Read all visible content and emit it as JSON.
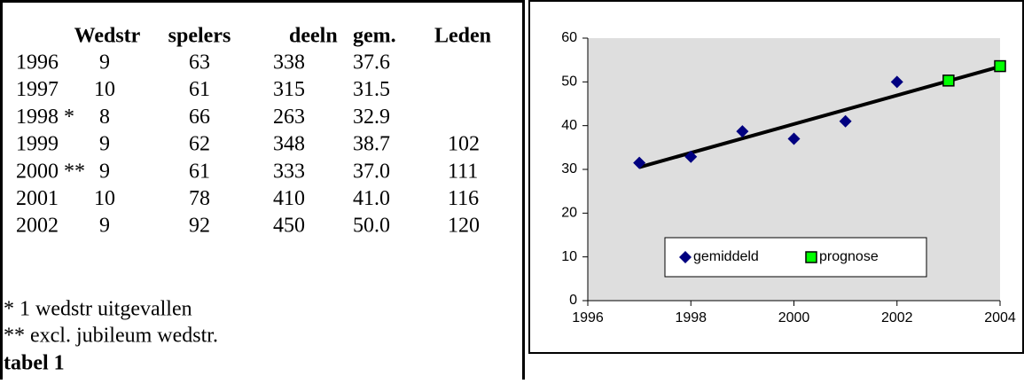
{
  "table": {
    "headers": [
      "Wedstr",
      "spelers",
      "deeln",
      "gem.",
      "Leden"
    ],
    "rows": [
      [
        "1996",
        "9",
        "63",
        "338",
        "37.6"
      ],
      [
        "1997",
        "10",
        "61",
        "315",
        "31.5"
      ],
      [
        "1998 *",
        "8",
        "66",
        "263",
        "32.9"
      ],
      [
        "1999",
        "9",
        "62",
        "348",
        "38.7",
        "102"
      ],
      [
        "2000 **",
        "9",
        "61",
        "333",
        "37.0",
        "111"
      ],
      [
        "2001",
        "10",
        "78",
        "410",
        "41.0",
        "116"
      ],
      [
        "2002",
        "9",
        "92",
        "450",
        "50.0",
        "120"
      ]
    ],
    "notes": [
      "* 1 wedstr uitgevallen",
      "** excl. jubileum wedstr."
    ],
    "caption": "tabel 1"
  },
  "chart_data": {
    "type": "scatter",
    "series": [
      {
        "name": "gemiddeld",
        "color": "#000080",
        "marker": "diamond",
        "x": [
          1997,
          1998,
          1999,
          2000,
          2001,
          2002
        ],
        "values": [
          31.5,
          32.9,
          38.7,
          37.0,
          41.0,
          50.0
        ]
      },
      {
        "name": "prognose",
        "color": "#00ff00",
        "marker": "square",
        "x": [
          2003,
          2004
        ],
        "values": [
          50.3,
          53.6
        ]
      }
    ],
    "trendline": {
      "color": "#000000",
      "x": [
        1997,
        2004
      ],
      "values": [
        30.5,
        53.5
      ]
    },
    "xlim": [
      1996,
      2004
    ],
    "xticks": [
      1996,
      1998,
      2000,
      2002,
      2004
    ],
    "ylim": [
      0,
      60
    ],
    "yticks": [
      0,
      10,
      20,
      30,
      40,
      50,
      60
    ],
    "plot_background": "#dedede",
    "legend": "bottom"
  }
}
